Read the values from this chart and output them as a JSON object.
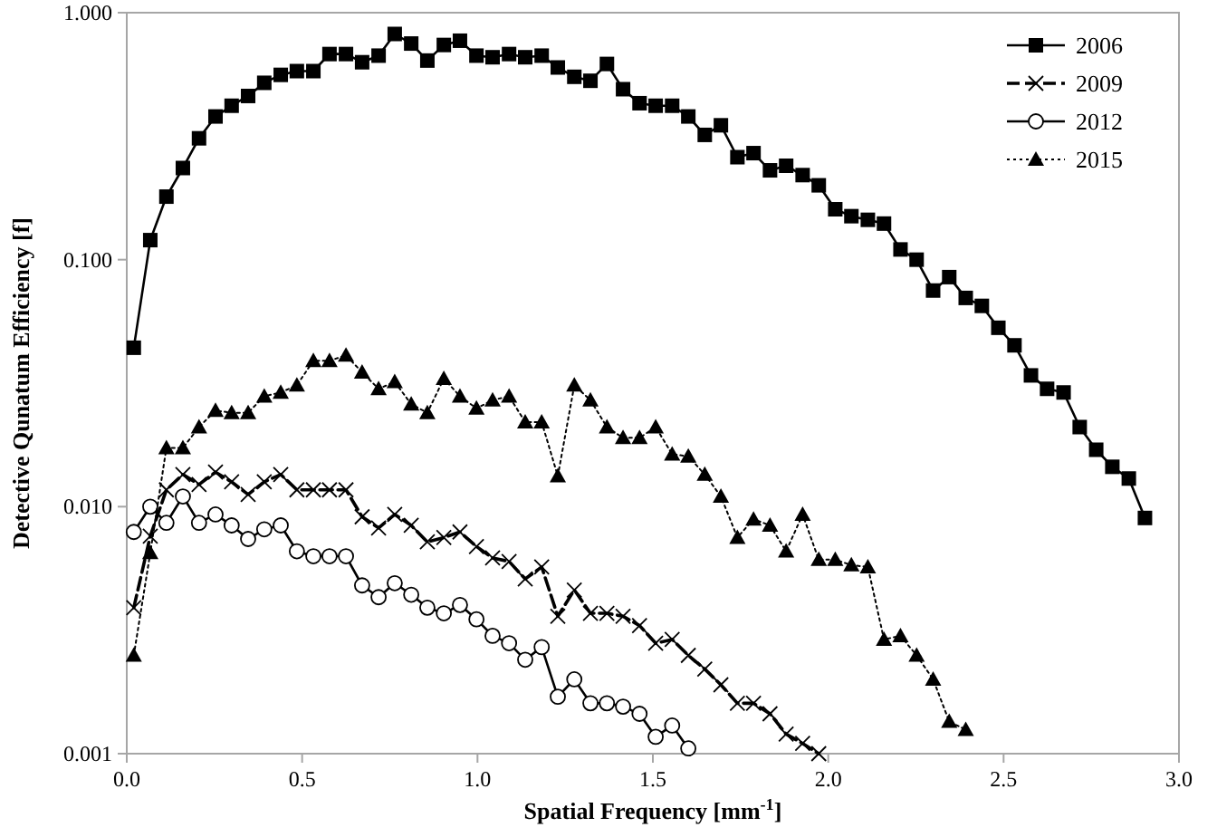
{
  "chart_data": {
    "type": "line",
    "xlabel": "Spatial Frequency [mm$^{-1}$]",
    "ylabel": "Detective Qunatum Efficiency [f]",
    "log": "y",
    "xlim": [
      0,
      3
    ],
    "ylim": [
      0.001,
      1
    ],
    "xticks": [
      {
        "value": 0,
        "label": "0.0"
      },
      {
        "value": 0.5,
        "label": "0.5"
      },
      {
        "value": 1,
        "label": "1.0"
      },
      {
        "value": 1.5,
        "label": "1.5"
      },
      {
        "value": 2,
        "label": "2.0"
      },
      {
        "value": 2.5,
        "label": "2.5"
      },
      {
        "value": 3,
        "label": "3.0"
      }
    ],
    "yticks": [
      {
        "value": 0.001,
        "label": "0.001"
      },
      {
        "value": 0.01,
        "label": "0.010"
      },
      {
        "value": 0.1,
        "label": "0.100"
      },
      {
        "value": 1,
        "label": "1.000"
      }
    ],
    "x": [
      0.02,
      0.067,
      0.113,
      0.16,
      0.206,
      0.253,
      0.299,
      0.346,
      0.392,
      0.439,
      0.485,
      0.532,
      0.578,
      0.625,
      0.671,
      0.718,
      0.764,
      0.811,
      0.857,
      0.904,
      0.95,
      0.997,
      1.043,
      1.09,
      1.136,
      1.183,
      1.229,
      1.276,
      1.322,
      1.369,
      1.415,
      1.462,
      1.508,
      1.555,
      1.601,
      1.648,
      1.694,
      1.741,
      1.787,
      1.834,
      1.88,
      1.927,
      1.973,
      2.02,
      2.066,
      2.113,
      2.159,
      2.206,
      2.252,
      2.299,
      2.345,
      2.392,
      2.438,
      2.485,
      2.531,
      2.578,
      2.624,
      2.671,
      2.717,
      2.764,
      2.81,
      2.857,
      2.903
    ],
    "series": [
      {
        "name": "2006",
        "color": "#000000",
        "marker": "square",
        "line_style": "solid",
        "values": [
          0.044,
          0.12,
          0.18,
          0.235,
          0.31,
          0.38,
          0.42,
          0.46,
          0.52,
          0.56,
          0.58,
          0.58,
          0.68,
          0.68,
          0.63,
          0.67,
          0.82,
          0.75,
          0.64,
          0.74,
          0.77,
          0.67,
          0.66,
          0.68,
          0.66,
          0.67,
          0.6,
          0.55,
          0.53,
          0.62,
          0.49,
          0.43,
          0.42,
          0.42,
          0.38,
          0.32,
          0.35,
          0.26,
          0.27,
          0.23,
          0.24,
          0.22,
          0.2,
          0.16,
          0.15,
          0.145,
          0.14,
          0.11,
          0.1,
          0.075,
          0.085,
          0.07,
          0.065,
          0.053,
          0.045,
          0.034,
          0.03,
          0.029,
          0.021,
          0.017,
          0.0145,
          0.013,
          0.009
        ]
      },
      {
        "name": "2009",
        "color": "#000000",
        "marker": "cross",
        "line_style": "dashed",
        "values": [
          0.0039,
          0.0076,
          0.0117,
          0.0135,
          0.0123,
          0.0138,
          0.0126,
          0.0112,
          0.0126,
          0.0135,
          0.0117,
          0.0117,
          0.0117,
          0.0117,
          0.0091,
          0.0082,
          0.0093,
          0.0084,
          0.0072,
          0.0075,
          0.0079,
          0.0069,
          0.0062,
          0.006,
          0.0051,
          0.0057,
          0.0036,
          0.0046,
          0.0037,
          0.0037,
          0.0036,
          0.0033,
          0.0028,
          0.0029,
          0.0025,
          0.0022,
          0.0019,
          0.0016,
          0.0016,
          0.00145,
          0.0012,
          0.0011,
          0.001,
          null,
          null,
          null,
          null,
          null,
          null,
          null,
          null,
          null,
          null,
          null,
          null,
          null,
          null,
          null,
          null,
          null,
          null,
          null,
          null
        ]
      },
      {
        "name": "2012",
        "color": "#000000",
        "marker": "circle",
        "line_style": "solid",
        "values": [
          0.0079,
          0.01,
          0.0086,
          0.011,
          0.0086,
          0.0093,
          0.0084,
          0.0074,
          0.0081,
          0.0084,
          0.0066,
          0.0063,
          0.0063,
          0.0063,
          0.0048,
          0.0043,
          0.0049,
          0.0044,
          0.0039,
          0.0037,
          0.004,
          0.0035,
          0.003,
          0.0028,
          0.0024,
          0.0027,
          0.0017,
          0.002,
          0.0016,
          0.0016,
          0.00155,
          0.00145,
          0.00117,
          0.0013,
          0.00105,
          null,
          null,
          null,
          null,
          null,
          null,
          null,
          null,
          null,
          null,
          null,
          null,
          null,
          null,
          null,
          null,
          null,
          null,
          null,
          null,
          null,
          null,
          null,
          null,
          null,
          null,
          null,
          null
        ]
      },
      {
        "name": "2015",
        "color": "#000000",
        "marker": "triangle",
        "line_style": "dotted",
        "values": [
          0.0025,
          0.0065,
          0.0173,
          0.0173,
          0.021,
          0.0245,
          0.024,
          0.024,
          0.028,
          0.029,
          0.031,
          0.039,
          0.039,
          0.041,
          0.035,
          0.03,
          0.032,
          0.026,
          0.024,
          0.033,
          0.028,
          0.025,
          0.027,
          0.028,
          0.022,
          0.022,
          0.0133,
          0.031,
          0.027,
          0.021,
          0.019,
          0.019,
          0.021,
          0.0163,
          0.016,
          0.0135,
          0.011,
          0.0075,
          0.0089,
          0.0084,
          0.0066,
          0.0093,
          0.0061,
          0.0061,
          0.0058,
          0.0057,
          0.0029,
          0.003,
          0.0025,
          0.002,
          0.00135,
          0.00125,
          null,
          null,
          null,
          null,
          null,
          null,
          null,
          null,
          null,
          null,
          null
        ]
      }
    ],
    "legend": "top right",
    "grid": false
  }
}
